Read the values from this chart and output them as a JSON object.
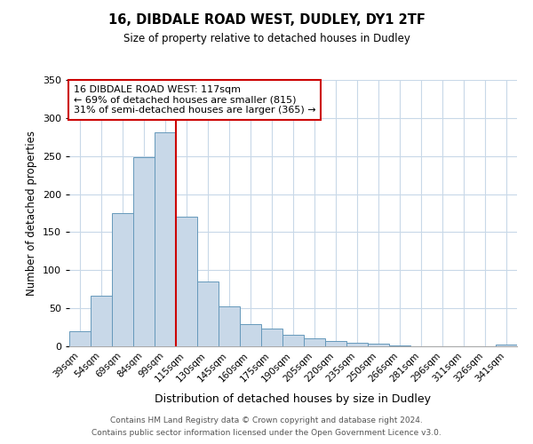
{
  "title": "16, DIBDALE ROAD WEST, DUDLEY, DY1 2TF",
  "subtitle": "Size of property relative to detached houses in Dudley",
  "xlabel": "Distribution of detached houses by size in Dudley",
  "ylabel": "Number of detached properties",
  "categories": [
    "39sqm",
    "54sqm",
    "69sqm",
    "84sqm",
    "99sqm",
    "115sqm",
    "130sqm",
    "145sqm",
    "160sqm",
    "175sqm",
    "190sqm",
    "205sqm",
    "220sqm",
    "235sqm",
    "250sqm",
    "266sqm",
    "281sqm",
    "296sqm",
    "311sqm",
    "326sqm",
    "341sqm"
  ],
  "values": [
    20,
    67,
    175,
    249,
    281,
    170,
    85,
    52,
    29,
    23,
    15,
    10,
    7,
    5,
    4,
    1,
    0,
    0,
    0,
    0,
    2
  ],
  "bar_color": "#c8d8e8",
  "bar_edge_color": "#6699bb",
  "vline_color": "#cc0000",
  "vline_x": 4.5,
  "annotation_lines": [
    "16 DIBDALE ROAD WEST: 117sqm",
    "← 69% of detached houses are smaller (815)",
    "31% of semi-detached houses are larger (365) →"
  ],
  "annotation_box_color": "#ffffff",
  "annotation_box_edge_color": "#cc0000",
  "ylim": [
    0,
    350
  ],
  "yticks": [
    0,
    50,
    100,
    150,
    200,
    250,
    300,
    350
  ],
  "footer_lines": [
    "Contains HM Land Registry data © Crown copyright and database right 2024.",
    "Contains public sector information licensed under the Open Government Licence v3.0."
  ],
  "background_color": "#ffffff",
  "grid_color": "#c8d8e8"
}
